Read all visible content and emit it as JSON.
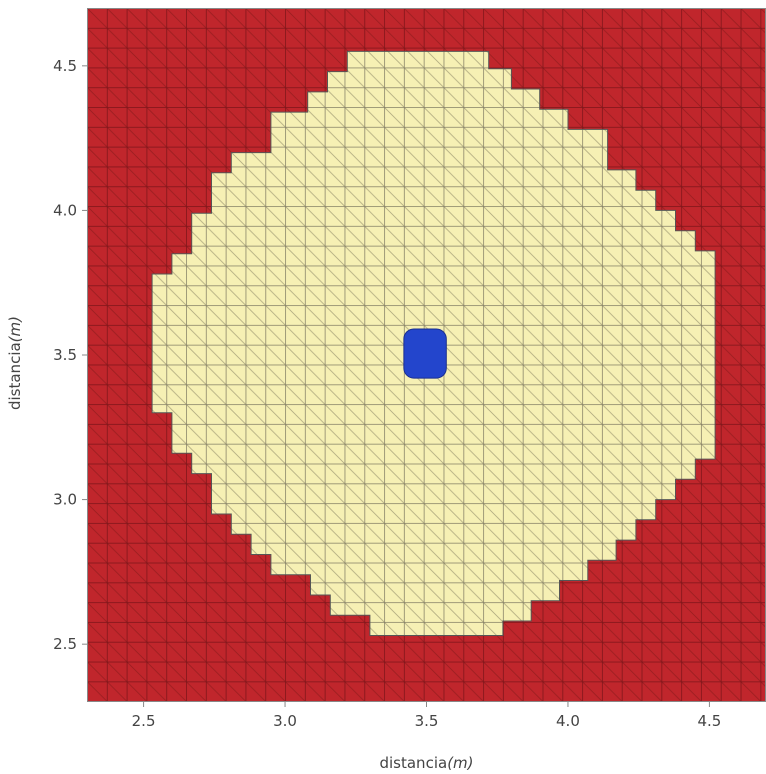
{
  "chart_data": {
    "type": "heatmap",
    "title": "",
    "xlabel": {
      "text": "distancia",
      "unit": "(m)"
    },
    "ylabel": {
      "text": "distancia",
      "unit": "(m)"
    },
    "xlim": [
      2.3,
      4.7
    ],
    "ylim": [
      2.3,
      4.7
    ],
    "xticks": [
      "2.5",
      "3.0",
      "3.5",
      "4.0",
      "4.5"
    ],
    "yticks": [
      "2.5",
      "3.0",
      "3.5",
      "4.0",
      "4.5"
    ],
    "grid_step": 0.07,
    "mesh": "triangulated square cells",
    "regions": [
      {
        "name": "outer",
        "color": "#c0262c",
        "shape": "background"
      },
      {
        "name": "disk",
        "color": "#f6f0b4",
        "shape": "stepped octagon",
        "boundary_points": [
          [
            3.3,
            2.53
          ],
          [
            3.77,
            2.53
          ],
          [
            3.77,
            2.58
          ],
          [
            3.87,
            2.58
          ],
          [
            3.87,
            2.65
          ],
          [
            3.97,
            2.65
          ],
          [
            3.97,
            2.72
          ],
          [
            4.07,
            2.72
          ],
          [
            4.07,
            2.79
          ],
          [
            4.17,
            2.79
          ],
          [
            4.17,
            2.86
          ],
          [
            4.24,
            2.86
          ],
          [
            4.24,
            2.93
          ],
          [
            4.31,
            2.93
          ],
          [
            4.31,
            3.0
          ],
          [
            4.38,
            3.0
          ],
          [
            4.38,
            3.07
          ],
          [
            4.45,
            3.07
          ],
          [
            4.45,
            3.14
          ],
          [
            4.52,
            3.14
          ],
          [
            4.52,
            3.86
          ],
          [
            4.45,
            3.86
          ],
          [
            4.45,
            3.93
          ],
          [
            4.38,
            3.93
          ],
          [
            4.38,
            4.0
          ],
          [
            4.31,
            4.0
          ],
          [
            4.31,
            4.07
          ],
          [
            4.24,
            4.07
          ],
          [
            4.24,
            4.14
          ],
          [
            4.14,
            4.14
          ],
          [
            4.14,
            4.28
          ],
          [
            4.0,
            4.28
          ],
          [
            4.0,
            4.35
          ],
          [
            3.9,
            4.35
          ],
          [
            3.9,
            4.42
          ],
          [
            3.8,
            4.42
          ],
          [
            3.8,
            4.49
          ],
          [
            3.72,
            4.49
          ],
          [
            3.72,
            4.55
          ],
          [
            3.22,
            4.55
          ],
          [
            3.22,
            4.48
          ],
          [
            3.15,
            4.48
          ],
          [
            3.15,
            4.41
          ],
          [
            3.08,
            4.41
          ],
          [
            3.08,
            4.34
          ],
          [
            2.95,
            4.34
          ],
          [
            2.95,
            4.2
          ],
          [
            2.81,
            4.2
          ],
          [
            2.81,
            4.13
          ],
          [
            2.74,
            4.13
          ],
          [
            2.74,
            3.99
          ],
          [
            2.67,
            3.99
          ],
          [
            2.67,
            3.85
          ],
          [
            2.6,
            3.85
          ],
          [
            2.6,
            3.78
          ],
          [
            2.53,
            3.78
          ],
          [
            2.53,
            3.3
          ],
          [
            2.6,
            3.3
          ],
          [
            2.6,
            3.16
          ],
          [
            2.67,
            3.16
          ],
          [
            2.67,
            3.09
          ],
          [
            2.74,
            3.09
          ],
          [
            2.74,
            2.95
          ],
          [
            2.81,
            2.95
          ],
          [
            2.81,
            2.88
          ],
          [
            2.88,
            2.88
          ],
          [
            2.88,
            2.81
          ],
          [
            2.95,
            2.81
          ],
          [
            2.95,
            2.74
          ],
          [
            3.09,
            2.74
          ],
          [
            3.09,
            2.67
          ],
          [
            3.16,
            2.67
          ],
          [
            3.16,
            2.6
          ],
          [
            3.3,
            2.6
          ]
        ]
      },
      {
        "name": "center",
        "color": "#2345cc",
        "shape": "rounded square",
        "x_range": [
          3.42,
          3.57
        ],
        "y_range": [
          3.42,
          3.59
        ]
      }
    ]
  }
}
